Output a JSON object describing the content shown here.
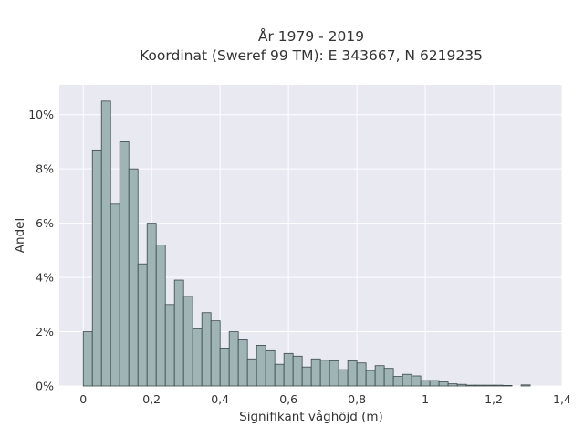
{
  "chart_data": {
    "type": "bar",
    "title": "År 1979 - 2019",
    "subtitle": "Koordinat (Sweref 99 TM): E 343667, N 6219235",
    "xlabel": "Signifikant våghöjd (m)",
    "ylabel": "Andel",
    "xlim": [
      -0.07,
      1.4
    ],
    "ylim": [
      0,
      0.111
    ],
    "x_ticks": [
      0,
      0.2,
      0.4,
      0.6,
      0.8,
      1,
      1.2,
      1.4
    ],
    "x_tick_labels": [
      "0",
      "0,2",
      "0,4",
      "0,6",
      "0,8",
      "1",
      "1,2",
      "1,4"
    ],
    "y_ticks": [
      0,
      0.02,
      0.04,
      0.06,
      0.08,
      0.1
    ],
    "y_tick_labels": [
      "0%",
      "2%",
      "4%",
      "6%",
      "8%",
      "10%"
    ],
    "bin_width": 0.02667,
    "bin_start": 0,
    "values": [
      0.02,
      0.087,
      0.105,
      0.067,
      0.09,
      0.08,
      0.045,
      0.06,
      0.052,
      0.03,
      0.039,
      0.033,
      0.021,
      0.027,
      0.024,
      0.014,
      0.02,
      0.017,
      0.01,
      0.015,
      0.013,
      0.008,
      0.012,
      0.011,
      0.007,
      0.01,
      0.0095,
      0.0093,
      0.006,
      0.0093,
      0.0085,
      0.0057,
      0.0075,
      0.0065,
      0.0035,
      0.0043,
      0.0037,
      0.002,
      0.002,
      0.0015,
      0.0008,
      0.0006,
      0.0003,
      0.0003,
      0.0003,
      0.0003,
      0.0002,
      0,
      0.0004
    ],
    "grid": true,
    "bar_color": "#9fb4b4",
    "bar_edge_color": "#3a4a4a",
    "plot_background": "#e9e9f1"
  }
}
